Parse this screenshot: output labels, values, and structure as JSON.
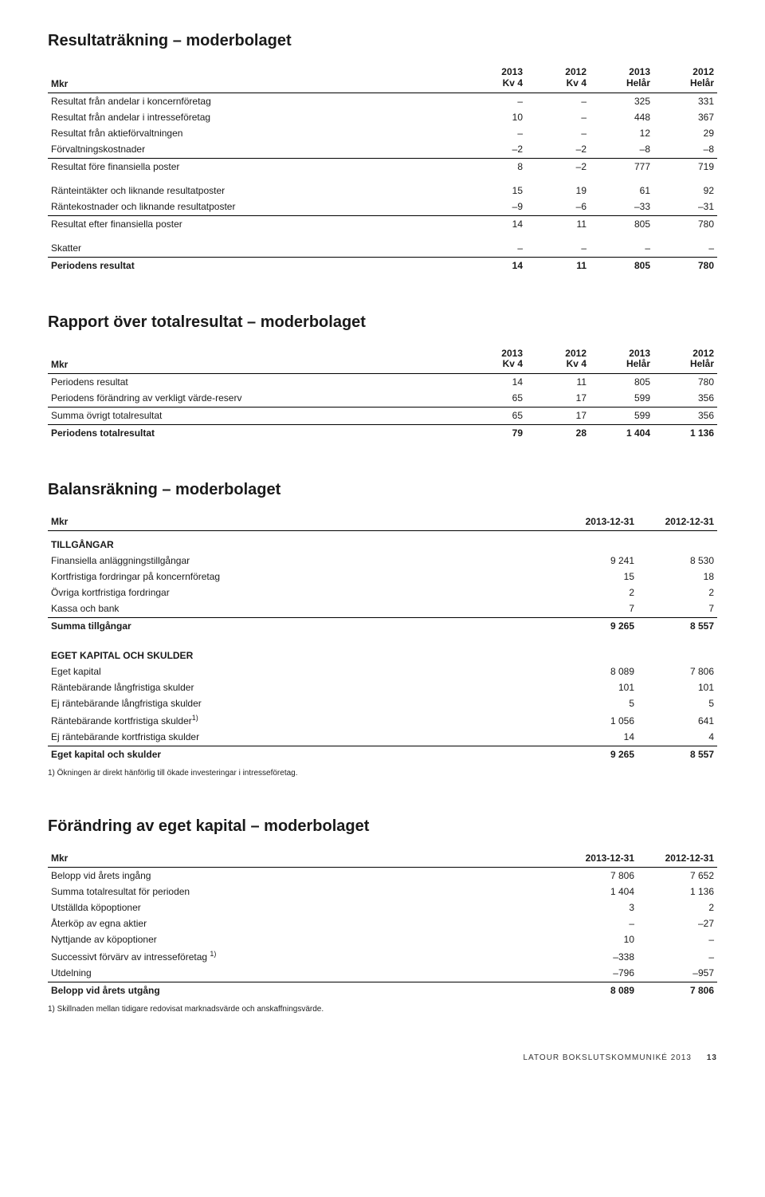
{
  "sections": {
    "resultat": {
      "title": "Resultaträkning – moderbolaget",
      "header": {
        "mkr": "Mkr",
        "cols": [
          [
            "2013",
            "Kv 4"
          ],
          [
            "2012",
            "Kv 4"
          ],
          [
            "2013",
            "Helår"
          ],
          [
            "2012",
            "Helår"
          ]
        ]
      },
      "rows": [
        {
          "label": "Resultat från andelar i koncernföretag",
          "v": [
            "–",
            "–",
            "325",
            "331"
          ]
        },
        {
          "label": "Resultat från andelar i intresseföretag",
          "v": [
            "10",
            "–",
            "448",
            "367"
          ]
        },
        {
          "label": "Resultat från aktieförvaltningen",
          "v": [
            "–",
            "–",
            "12",
            "29"
          ]
        },
        {
          "label": "Förvaltningskostnader",
          "v": [
            "–2",
            "–2",
            "–8",
            "–8"
          ],
          "sep": true
        },
        {
          "label": "Resultat före finansiella poster",
          "v": [
            "8",
            "–2",
            "777",
            "719"
          ],
          "gapAfter": true
        },
        {
          "label": "Ränteintäkter och liknande resultatposter",
          "v": [
            "15",
            "19",
            "61",
            "92"
          ]
        },
        {
          "label": "Räntekostnader och liknande resultatposter",
          "v": [
            "–9",
            "–6",
            "–33",
            "–31"
          ],
          "sep": true
        },
        {
          "label": "Resultat efter finansiella poster",
          "v": [
            "14",
            "11",
            "805",
            "780"
          ],
          "gapAfter": true
        },
        {
          "label": "Skatter",
          "v": [
            "–",
            "–",
            "–",
            "–"
          ],
          "sep": true
        },
        {
          "label": "Periodens resultat",
          "v": [
            "14",
            "11",
            "805",
            "780"
          ],
          "bold": true
        }
      ]
    },
    "rapport": {
      "title": "Rapport över totalresultat – moderbolaget",
      "header": {
        "mkr": "Mkr",
        "cols": [
          [
            "2013",
            "Kv 4"
          ],
          [
            "2012",
            "Kv 4"
          ],
          [
            "2013",
            "Helår"
          ],
          [
            "2012",
            "Helår"
          ]
        ]
      },
      "rows": [
        {
          "label": "Periodens resultat",
          "v": [
            "14",
            "11",
            "805",
            "780"
          ]
        },
        {
          "label": "Periodens förändring av verkligt värde-reserv",
          "v": [
            "65",
            "17",
            "599",
            "356"
          ],
          "sep": true
        },
        {
          "label": "Summa övrigt totalresultat",
          "v": [
            "65",
            "17",
            "599",
            "356"
          ],
          "sep": true
        },
        {
          "label": "Periodens totalresultat",
          "v": [
            "79",
            "28",
            "1 404",
            "1 136"
          ],
          "bold": true
        }
      ]
    },
    "balans": {
      "title": "Balansräkning – moderbolaget",
      "header": {
        "mkr": "Mkr",
        "cols": [
          "2013-12-31",
          "2012-12-31"
        ]
      },
      "rows": [
        {
          "label": "TILLGÅNGAR",
          "subhead": true
        },
        {
          "label": "Finansiella anläggningstillgångar",
          "v": [
            "9 241",
            "8 530"
          ]
        },
        {
          "label": "Kortfristiga fordringar på koncernföretag",
          "v": [
            "15",
            "18"
          ]
        },
        {
          "label": "Övriga kortfristiga fordringar",
          "v": [
            "2",
            "2"
          ]
        },
        {
          "label": "Kassa och bank",
          "v": [
            "7",
            "7"
          ],
          "sep": true
        },
        {
          "label": "Summa tillgångar",
          "v": [
            "9 265",
            "8 557"
          ],
          "bold": true,
          "gapAfter": true
        },
        {
          "label": "EGET KAPITAL OCH SKULDER",
          "subhead": true
        },
        {
          "label": "Eget kapital",
          "v": [
            "8 089",
            "7 806"
          ]
        },
        {
          "label": "Räntebärande långfristiga skulder",
          "v": [
            "101",
            "101"
          ]
        },
        {
          "label": "Ej räntebärande långfristiga skulder",
          "v": [
            "5",
            "5"
          ]
        },
        {
          "label": "Räntebärande kortfristiga skulder",
          "sup": "1)",
          "v": [
            "1 056",
            "641"
          ]
        },
        {
          "label": "Ej räntebärande kortfristiga skulder",
          "v": [
            "14",
            "4"
          ],
          "sep": true
        },
        {
          "label": "Eget kapital och skulder",
          "v": [
            "9 265",
            "8 557"
          ],
          "bold": true
        }
      ],
      "footnote": "1) Ökningen är direkt hänförlig till ökade investeringar i intresseföretag."
    },
    "forandring": {
      "title": "Förändring av eget kapital – moderbolaget",
      "header": {
        "mkr": "Mkr",
        "cols": [
          "2013-12-31",
          "2012-12-31"
        ]
      },
      "rows": [
        {
          "label": "Belopp vid årets ingång",
          "v": [
            "7 806",
            "7 652"
          ]
        },
        {
          "label": "Summa totalresultat för perioden",
          "v": [
            "1 404",
            "1 136"
          ]
        },
        {
          "label": "Utställda köpoptioner",
          "v": [
            "3",
            "2"
          ]
        },
        {
          "label": "Återköp av egna aktier",
          "v": [
            "–",
            "–27"
          ]
        },
        {
          "label": "Nyttjande av köpoptioner",
          "v": [
            "10",
            "–"
          ]
        },
        {
          "label": "Successivt förvärv av intresseföretag ",
          "sup": "1)",
          "v": [
            "–338",
            "–"
          ]
        },
        {
          "label": "Utdelning",
          "v": [
            "–796",
            "–957"
          ],
          "sep": true
        },
        {
          "label": "Belopp vid årets utgång",
          "v": [
            "8 089",
            "7 806"
          ],
          "bold": true
        }
      ],
      "footnote": "1) Skillnaden mellan tidigare redovisat marknadsvärde och anskaffningsvärde."
    }
  },
  "footer": {
    "text": "LATOUR BOKSLUTSKOMMUNIKÉ 2013",
    "page": "13"
  }
}
